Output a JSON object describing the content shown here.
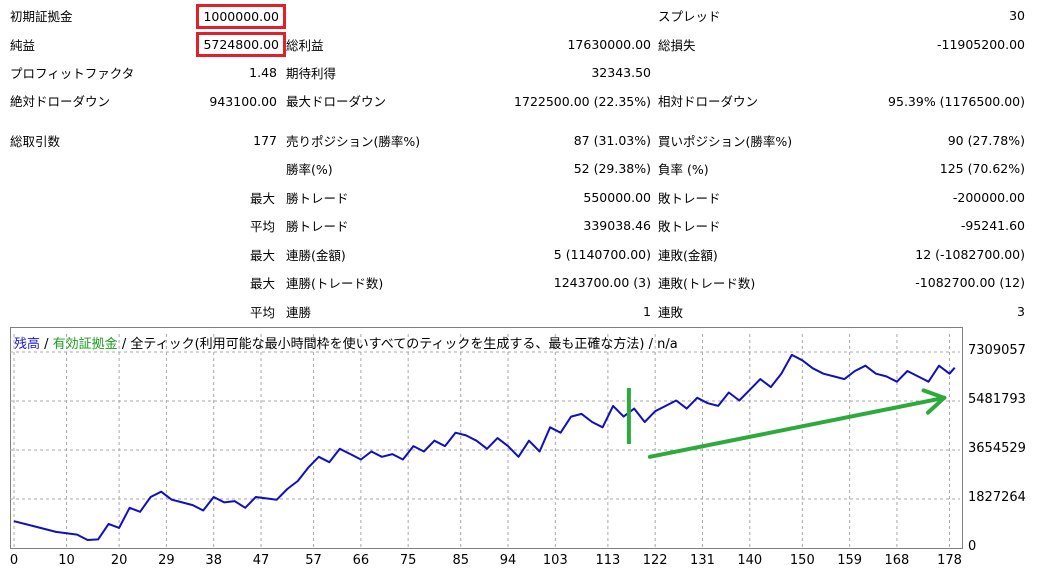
{
  "report": {
    "initial_deposit": {
      "label": "初期証拠金",
      "value": "1000000.00"
    },
    "spread": {
      "label": "スプレッド",
      "value": "30"
    },
    "net_profit": {
      "label": "純益",
      "value": "5724800.00"
    },
    "gross_profit": {
      "label": "総利益",
      "value": "17630000.00"
    },
    "gross_loss": {
      "label": "総損失",
      "value": "-11905200.00"
    },
    "profit_factor": {
      "label": "プロフィットファクタ",
      "value": "1.48"
    },
    "expected_payoff": {
      "label": "期待利得",
      "value": "32343.50"
    },
    "abs_drawdown": {
      "label": "絶対ドローダウン",
      "value": "943100.00"
    },
    "max_drawdown": {
      "label": "最大ドローダウン",
      "value": "1722500.00 (22.35%)"
    },
    "rel_drawdown": {
      "label": "相対ドローダウン",
      "value": "95.39% (1176500.00)"
    },
    "total_trades": {
      "label": "総取引数",
      "value": "177"
    },
    "short_positions": {
      "label": "売りポジション(勝率%)",
      "value": "87 (31.03%)"
    },
    "long_positions": {
      "label": "買いポジション(勝率%)",
      "value": "90 (27.78%)"
    },
    "win_rate": {
      "label": "勝率(%)",
      "value": "52 (29.38%)"
    },
    "loss_rate": {
      "label": "負率 (%)",
      "value": "125 (70.62%)"
    },
    "max_win_trade": {
      "prefix": "最大",
      "label": "勝トレード",
      "value": "550000.00"
    },
    "max_loss_trade": {
      "label": "敗トレード",
      "value": "-200000.00"
    },
    "avg_win_trade": {
      "prefix": "平均",
      "label": "勝トレード",
      "value": "339038.46"
    },
    "avg_loss_trade": {
      "label": "敗トレード",
      "value": "-95241.60"
    },
    "max_consec_wins_money": {
      "prefix": "最大",
      "label": "連勝(金額)",
      "value": "5 (1140700.00)"
    },
    "max_consec_losses_money": {
      "label": "連敗(金額)",
      "value": "12 (-1082700.00)"
    },
    "max_consec_wins_count": {
      "prefix": "最大",
      "label": "連勝(トレード数)",
      "value": "1243700.00 (3)"
    },
    "max_consec_losses_count": {
      "label": "連敗(トレード数)",
      "value": "-1082700.00 (12)"
    },
    "avg_consec_wins": {
      "prefix": "平均",
      "label": "連勝",
      "value": "1"
    },
    "avg_consec_losses": {
      "label": "連敗",
      "value": "3"
    }
  },
  "chart_data": {
    "type": "line",
    "legend": {
      "balance": "残高",
      "sep1": " / ",
      "equity": "有効証拠金",
      "sep2": " / ",
      "model": "全ティック(利用可能な最小時間枠を使いすべてのティックを生成する、最も正確な方法)",
      "sep3": " / ",
      "extra": "n/a"
    },
    "y_ticks": [
      "7309057",
      "5481793",
      "3654529",
      "1827264",
      "0"
    ],
    "y_tick_values": [
      7309057,
      5481793,
      3654529,
      1827264,
      0
    ],
    "ylim": [
      0,
      7309057
    ],
    "x_ticks": [
      "0",
      "10",
      "20",
      "29",
      "38",
      "47",
      "57",
      "66",
      "75",
      "85",
      "94",
      "103",
      "113",
      "122",
      "131",
      "140",
      "150",
      "159",
      "168",
      "178"
    ],
    "x_tick_values": [
      0,
      10,
      20,
      29,
      38,
      47,
      57,
      66,
      75,
      85,
      94,
      103,
      113,
      122,
      131,
      140,
      150,
      159,
      168,
      178
    ],
    "xlim": [
      0,
      180
    ],
    "grid": true,
    "colors": {
      "balance": "#1010c0",
      "equity": "#1b9c1b",
      "annotation": "#2eaa3c",
      "highlight": "#e0202a"
    },
    "series": [
      {
        "name": "残高",
        "x": [
          0,
          4,
          8,
          12,
          14,
          16,
          18,
          20,
          22,
          24,
          26,
          28,
          30,
          32,
          34,
          36,
          38,
          40,
          42,
          44,
          46,
          48,
          50,
          52,
          54,
          56,
          58,
          60,
          62,
          64,
          66,
          68,
          70,
          72,
          74,
          76,
          78,
          80,
          82,
          84,
          86,
          88,
          90,
          92,
          94,
          96,
          98,
          100,
          102,
          104,
          106,
          108,
          110,
          112,
          114,
          116,
          118,
          120,
          122,
          124,
          126,
          128,
          130,
          132,
          134,
          136,
          138,
          140,
          142,
          144,
          146,
          148,
          150,
          152,
          154,
          156,
          158,
          160,
          162,
          164,
          166,
          168,
          170,
          172,
          174,
          176,
          178,
          179
        ],
        "y": [
          1000000,
          800000,
          600000,
          500000,
          300000,
          320000,
          900000,
          750000,
          1500000,
          1350000,
          1900000,
          2100000,
          1800000,
          1700000,
          1600000,
          1400000,
          1900000,
          1700000,
          1750000,
          1500000,
          1900000,
          1850000,
          1800000,
          2200000,
          2500000,
          3000000,
          3400000,
          3200000,
          3700000,
          3500000,
          3300000,
          3600000,
          3400000,
          3500000,
          3300000,
          3800000,
          3600000,
          4000000,
          3800000,
          4300000,
          4200000,
          4000000,
          3700000,
          4100000,
          3800000,
          3400000,
          4000000,
          3600000,
          4500000,
          4300000,
          4900000,
          5000000,
          4700000,
          4500000,
          5300000,
          4900000,
          5200000,
          4700000,
          5100000,
          5300000,
          5500000,
          5200000,
          5600000,
          5400000,
          5300000,
          5800000,
          5500000,
          5900000,
          6300000,
          6000000,
          6500000,
          7200000,
          7000000,
          6700000,
          6500000,
          6400000,
          6300000,
          6600000,
          6800000,
          6500000,
          6400000,
          6200000,
          6600000,
          6400000,
          6200000,
          6800000,
          6500000,
          6724800
        ]
      }
    ],
    "annotations": {
      "vertical_marker_x": 117,
      "arrow_start": [
        121,
        3400000
      ],
      "arrow_end": [
        177,
        5600000
      ]
    }
  }
}
